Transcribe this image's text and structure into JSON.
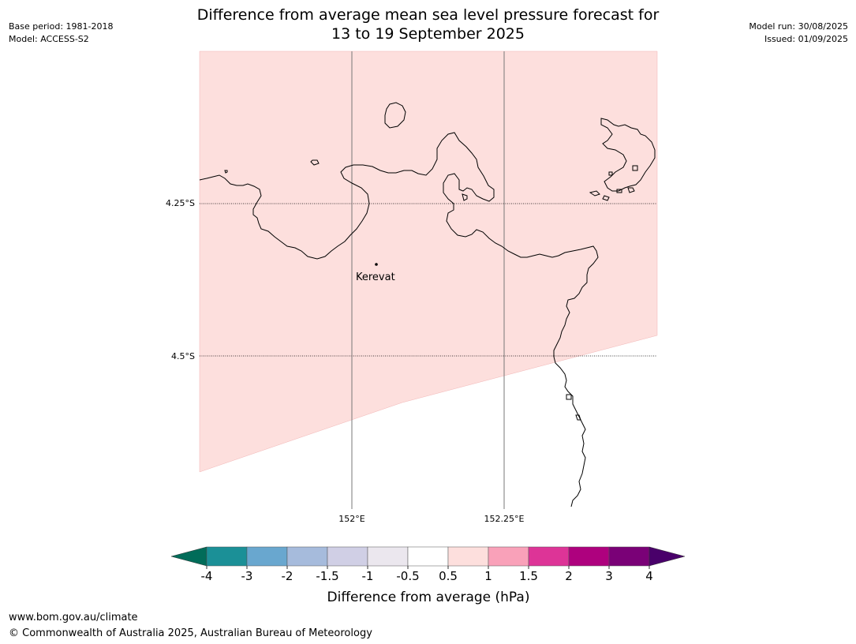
{
  "header": {
    "base_period": "Base period: 1981-2018",
    "model": "Model: ACCESS-S2",
    "title_line1": "Difference from average mean sea level pressure forecast for",
    "title_line2": "13 to 19 September 2025",
    "model_run": "Model run: 30/08/2025",
    "issued": "Issued: 01/09/2025"
  },
  "map": {
    "lat_labels": [
      "4.25°S",
      "4.5°S"
    ],
    "lon_labels": [
      "152°E",
      "152.25°E"
    ],
    "place_name": "Kerevat",
    "shading": {
      "category": "0.5 to 1",
      "color": "#fddfdd"
    }
  },
  "legend": {
    "label": "Difference from average (hPa)",
    "ticks": [
      "-4",
      "-3",
      "-2",
      "-1.5",
      "-1",
      "-0.5",
      "0.5",
      "1",
      "1.5",
      "2",
      "3",
      "4"
    ],
    "colors": [
      "#1b9097",
      "#69a7cf",
      "#a6bbdc",
      "#d0cfe5",
      "#ebe7ee",
      "#ffffff",
      "#fddfdd",
      "#f9a1b9",
      "#dd3497",
      "#ae017e",
      "#7a0177"
    ],
    "extend_low_color": "#016c59",
    "extend_high_color": "#49006a"
  },
  "footer": {
    "url": "www.bom.gov.au/climate",
    "copyright": "© Commonwealth of Australia 2025, Australian Bureau of Meteorology"
  }
}
